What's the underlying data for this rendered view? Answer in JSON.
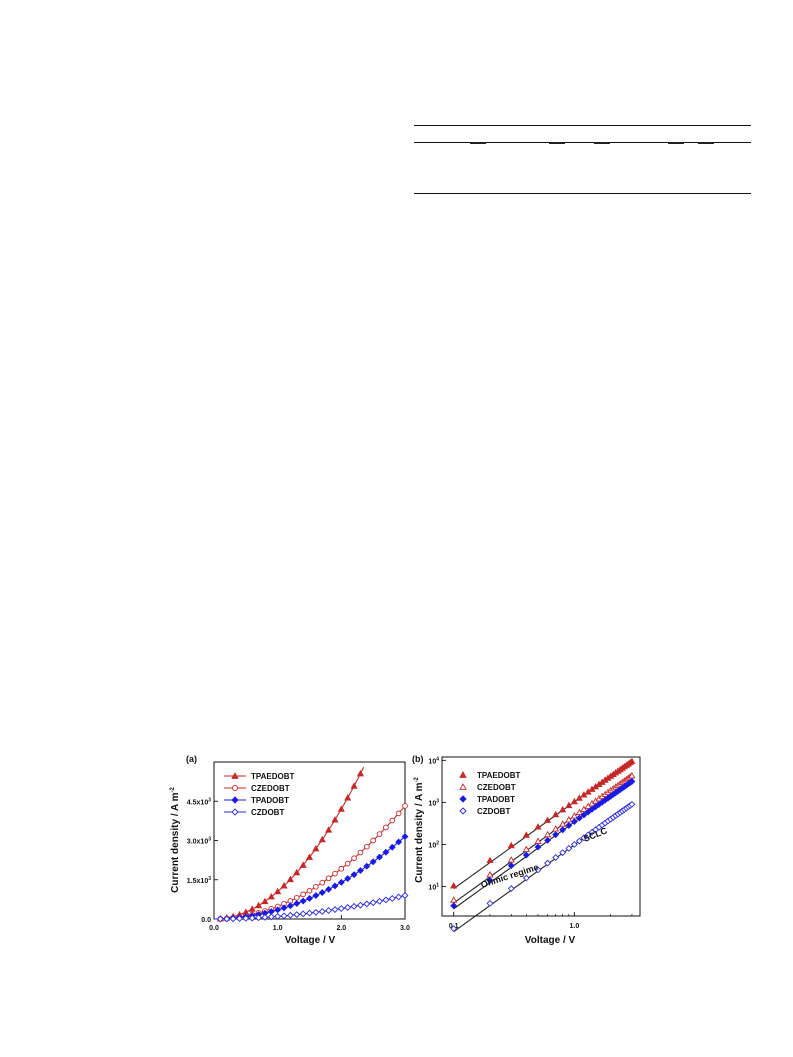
{
  "chart_data": [
    {
      "type": "scatter",
      "panel_label": "(a)",
      "xlabel": "Voltage / V",
      "ylabel": "Current density / A m",
      "ylabel_sup": "-2",
      "xlim": [
        0.0,
        3.0
      ],
      "ylim": [
        0,
        6000
      ],
      "x_ticks": [
        0.0,
        1.0,
        2.0,
        3.0
      ],
      "x_tick_labels": [
        "0.0",
        "1.0",
        "2.0",
        "3.0"
      ],
      "y_ticks": [
        0,
        1500,
        3000,
        4500
      ],
      "y_tick_labels": [
        "0.0",
        "1.5x10",
        "3.0x10",
        "4.5x10"
      ],
      "y_tick_sup": "3",
      "grid": false,
      "legend_position": "top-left",
      "series": [
        {
          "name": "TPAEDOBT",
          "marker": "triangle-filled",
          "color": "#c62828",
          "k": 1050,
          "n": 2
        },
        {
          "name": "CZEDOBT",
          "marker": "circle-open",
          "color": "#c62828",
          "k": 480,
          "n": 2
        },
        {
          "name": "TPADOBT",
          "marker": "diamond-filled",
          "color": "#1a1ae6",
          "k": 350,
          "n": 2
        },
        {
          "name": "CZDOBT",
          "marker": "diamond-open",
          "color": "#2a2ad8",
          "k": 100,
          "n": 2
        }
      ]
    },
    {
      "type": "scatter",
      "panel_label": "(b)",
      "xlabel": "Voltage / V",
      "ylabel": "Current density / A m",
      "ylabel_sup": "-2",
      "xscale": "log",
      "yscale": "log",
      "xlim": [
        0.08,
        3.5
      ],
      "ylim": [
        2,
        12000
      ],
      "x_ticks": [
        0.1,
        1.0
      ],
      "x_tick_labels": [
        "0.1",
        "1.0"
      ],
      "y_ticks": [
        10,
        100,
        1000,
        10000
      ],
      "y_tick_labels": [
        "10",
        "10",
        "10",
        "10"
      ],
      "y_tick_sups": [
        "1",
        "2",
        "3",
        "4"
      ],
      "grid": false,
      "legend_position": "top-left",
      "annotations": [
        "Ohmic regime",
        "SCLC"
      ],
      "series": [
        {
          "name": "TPAEDOBT",
          "marker": "triangle-filled",
          "color": "#c62828",
          "k": 1050,
          "n": 2
        },
        {
          "name": "CZEDOBT",
          "marker": "triangle-open",
          "color": "#c62828",
          "k": 480,
          "n": 2
        },
        {
          "name": "TPADOBT",
          "marker": "diamond-filled",
          "color": "#1a1ae6",
          "k": 350,
          "n": 2
        },
        {
          "name": "CZDOBT",
          "marker": "diamond-open",
          "color": "#2a2ad8",
          "k": 100,
          "n": 2
        }
      ]
    }
  ]
}
